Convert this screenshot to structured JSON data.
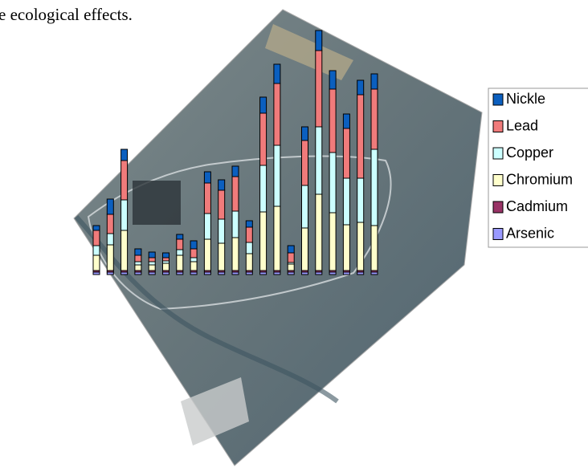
{
  "text": "e ecological effects.",
  "chart_data": {
    "type": "bar",
    "stacked": true,
    "categories": [
      null,
      null,
      null,
      null,
      null,
      null,
      null,
      null,
      null,
      null,
      null,
      null,
      null,
      null,
      null,
      null,
      null,
      null,
      null,
      null,
      null
    ],
    "ylim": [
      0,
      310
    ],
    "legend": "right",
    "series": [
      {
        "name": "Arsenic",
        "color": "#9999ff",
        "values": [
          3,
          3,
          3,
          3,
          3,
          3,
          3,
          3,
          3,
          3,
          3,
          3,
          3,
          3,
          3,
          3,
          3,
          3,
          3,
          3,
          3
        ]
      },
      {
        "name": "Cadmium",
        "color": "#993366",
        "values": [
          2,
          2,
          2,
          2,
          2,
          2,
          2,
          2,
          2,
          2,
          2,
          2,
          2,
          2,
          2,
          2,
          2,
          2,
          2,
          2,
          2
        ]
      },
      {
        "name": "Chromium",
        "color": "#ffffcc",
        "values": [
          19,
          32,
          50,
          7,
          7,
          9,
          19,
          11,
          39,
          34,
          41,
          21,
          73,
          80,
          8,
          53,
          95,
          72,
          57,
          60,
          56
        ]
      },
      {
        "name": "Copper",
        "color": "#ccffff",
        "values": [
          12,
          14,
          38,
          4,
          4,
          3,
          7,
          5,
          32,
          30,
          33,
          14,
          58,
          76,
          2,
          53,
          84,
          75,
          58,
          55,
          95
        ]
      },
      {
        "name": "Lead",
        "color": "#f07b7b",
        "values": [
          19,
          24,
          49,
          8,
          5,
          4,
          13,
          11,
          38,
          36,
          43,
          19,
          65,
          77,
          12,
          56,
          95,
          79,
          62,
          104,
          75
        ]
      },
      {
        "name": "Nickle",
        "color": "#0b5fbf",
        "values": [
          6,
          19,
          14,
          8,
          7,
          6,
          6,
          10,
          14,
          13,
          13,
          8,
          20,
          24,
          9,
          17,
          25,
          23,
          18,
          18,
          19
        ]
      }
    ]
  }
}
